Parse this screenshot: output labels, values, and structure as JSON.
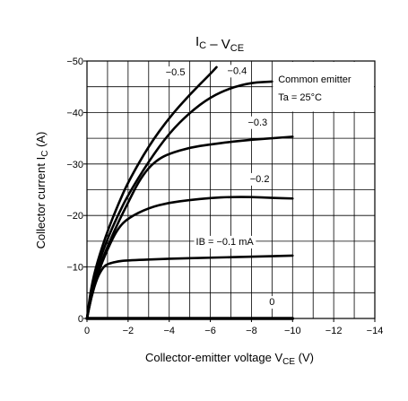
{
  "chart_data": {
    "type": "line",
    "title": "IC – VCE",
    "xlabel": "Collector-emitter voltage VCE (V)",
    "ylabel": "Collector current IC (A)",
    "xlim": [
      0,
      -14
    ],
    "ylim": [
      0,
      -50
    ],
    "xticks": [
      0,
      -2,
      -4,
      -6,
      -8,
      -10,
      -12,
      -14
    ],
    "yticks": [
      0,
      -10,
      -20,
      -30,
      -40,
      -50
    ],
    "xtick_labels": [
      "0",
      "−2",
      "−4",
      "−6",
      "−8",
      "−10",
      "−12",
      "−14"
    ],
    "ytick_labels": [
      "0",
      "−10",
      "−20",
      "−30",
      "−40",
      "−50"
    ],
    "grid": true,
    "grid_minor_step_x": -1,
    "grid_minor_step_y": -5,
    "legend_box": {
      "line1": "Common emitter",
      "line2": "Ta = 25°C",
      "placement": "top-right"
    },
    "series": [
      {
        "name": "−0.5",
        "points": [
          [
            0,
            0
          ],
          [
            -0.2,
            -6
          ],
          [
            -0.5,
            -11
          ],
          [
            -1,
            -17
          ],
          [
            -1.5,
            -22
          ],
          [
            -2,
            -26.5
          ],
          [
            -3,
            -33.5
          ],
          [
            -4,
            -39
          ],
          [
            -5,
            -43.5
          ],
          [
            -6,
            -47.5
          ],
          [
            -6.3,
            -48.8
          ]
        ],
        "label_at": [
          -4.3,
          -47.2
        ]
      },
      {
        "name": "−0.4",
        "points": [
          [
            0,
            0
          ],
          [
            -0.2,
            -5
          ],
          [
            -0.5,
            -10
          ],
          [
            -1,
            -15.5
          ],
          [
            -1.5,
            -20
          ],
          [
            -2,
            -24
          ],
          [
            -3,
            -30.5
          ],
          [
            -4,
            -36
          ],
          [
            -5,
            -40
          ],
          [
            -6,
            -43
          ],
          [
            -7,
            -44.8
          ],
          [
            -8,
            -45.8
          ],
          [
            -9,
            -46
          ]
        ],
        "label_at": [
          -7.3,
          -47.5
        ]
      },
      {
        "name": "−0.3",
        "points": [
          [
            0,
            0
          ],
          [
            -0.2,
            -4.5
          ],
          [
            -0.5,
            -9
          ],
          [
            -1,
            -14
          ],
          [
            -1.5,
            -18.5
          ],
          [
            -2,
            -22.5
          ],
          [
            -2.5,
            -26.5
          ],
          [
            -3,
            -29.3
          ],
          [
            -3.5,
            -31
          ],
          [
            -4,
            -32
          ],
          [
            -5,
            -33.2
          ],
          [
            -6,
            -33.8
          ],
          [
            -7,
            -34.3
          ],
          [
            -8,
            -34.7
          ],
          [
            -9,
            -35
          ],
          [
            -10,
            -35.3
          ]
        ],
        "label_at": [
          -8.3,
          -37.5
        ]
      },
      {
        "name": "−0.2",
        "points": [
          [
            0,
            0
          ],
          [
            -0.2,
            -4
          ],
          [
            -0.5,
            -8.5
          ],
          [
            -1,
            -13.5
          ],
          [
            -1.5,
            -17.5
          ],
          [
            -2,
            -19.5
          ],
          [
            -3,
            -21.5
          ],
          [
            -4,
            -22.5
          ],
          [
            -5,
            -23
          ],
          [
            -6,
            -23.4
          ],
          [
            -7,
            -23.6
          ],
          [
            -8,
            -23.6
          ],
          [
            -9,
            -23.4
          ],
          [
            -10,
            -23.3
          ]
        ],
        "label_at": [
          -8.4,
          -26.5
        ]
      },
      {
        "name": "IB = −0.1 mA",
        "points": [
          [
            0,
            0
          ],
          [
            -0.2,
            -4
          ],
          [
            -0.5,
            -8
          ],
          [
            -0.8,
            -10
          ],
          [
            -1,
            -10.6
          ],
          [
            -1.5,
            -11.1
          ],
          [
            -2,
            -11.3
          ],
          [
            -4,
            -11.6
          ],
          [
            -6,
            -11.8
          ],
          [
            -8,
            -12
          ],
          [
            -10,
            -12.2
          ]
        ],
        "label_at": [
          -6.7,
          -14.3
        ]
      },
      {
        "name": "0",
        "points": [
          [
            0,
            0
          ],
          [
            -10,
            0
          ]
        ],
        "label_at": [
          -9.0,
          -2.6
        ]
      }
    ]
  }
}
